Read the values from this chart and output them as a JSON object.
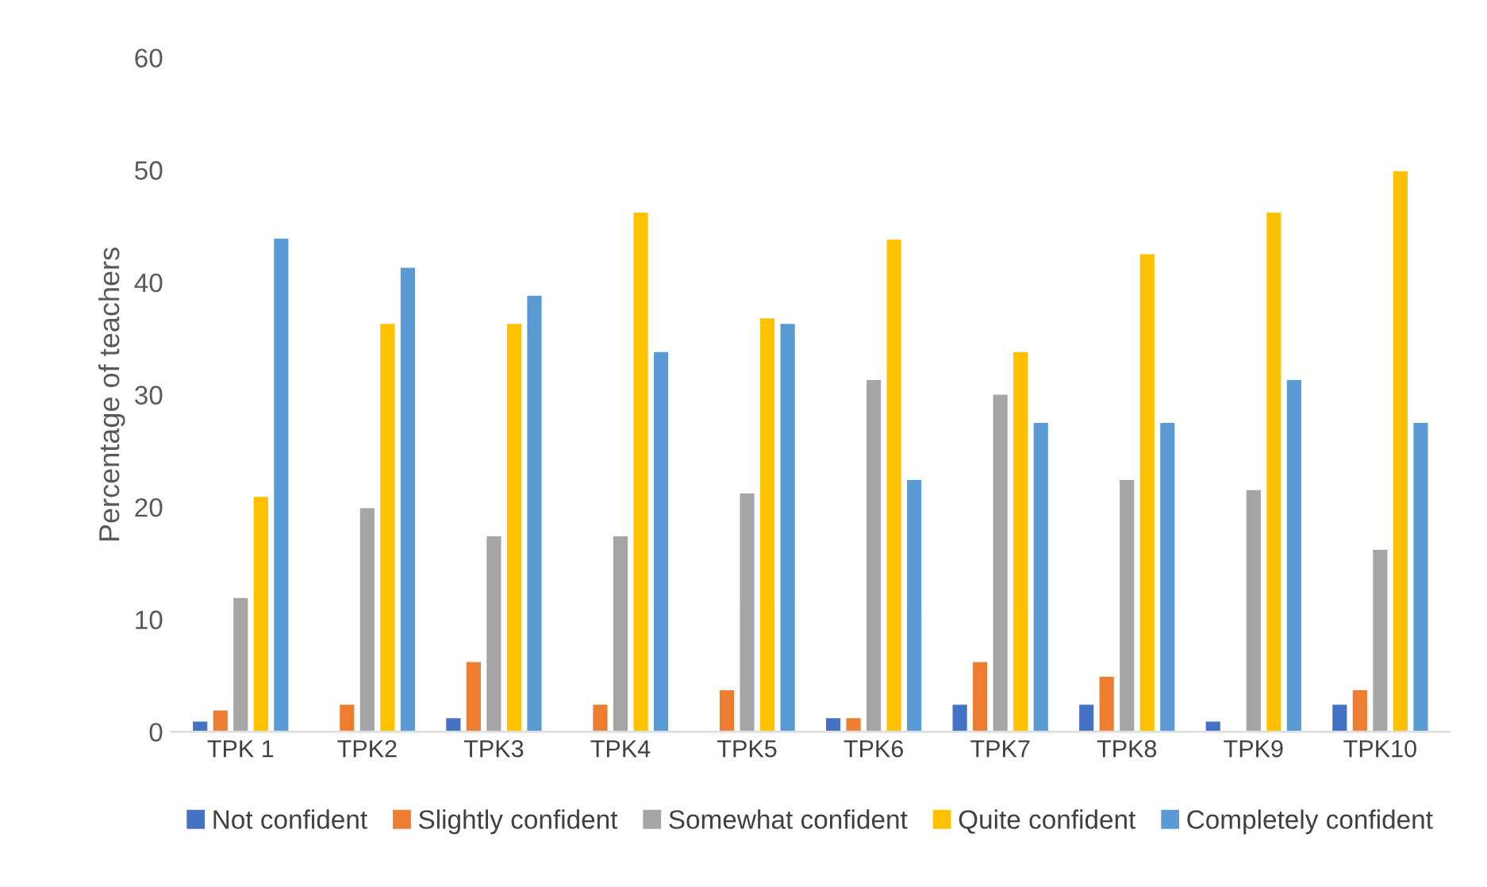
{
  "chart_data": {
    "type": "bar",
    "ylabel": "Percentage of teachers",
    "categories": [
      "TPK 1",
      "TPK2",
      "TPK3",
      "TPK4",
      "TPK5",
      "TPK6",
      "TPK7",
      "TPK8",
      "TPK9",
      "TPK10"
    ],
    "series": [
      {
        "name": "Not confident",
        "color": "#4472c4",
        "values": [
          1,
          0,
          1.3,
          0,
          0,
          1.3,
          2.5,
          2.5,
          1,
          2.5
        ]
      },
      {
        "name": "Slightly confident",
        "color": "#ed7d31",
        "values": [
          2,
          2.5,
          6.3,
          2.5,
          3.8,
          1.3,
          6.3,
          5,
          0,
          3.8
        ]
      },
      {
        "name": "Somewhat confident",
        "color": "#a5a5a5",
        "values": [
          12,
          20,
          17.5,
          17.5,
          21.3,
          31.4,
          30.1,
          22.5,
          21.6,
          16.3
        ]
      },
      {
        "name": "Quite confident",
        "color": "#ffc000",
        "values": [
          21,
          36.4,
          36.4,
          46.3,
          36.9,
          43.9,
          33.9,
          42.6,
          46.3,
          50
        ]
      },
      {
        "name": "Completely confident",
        "color": "#5b9bd5",
        "values": [
          44,
          41.4,
          38.9,
          33.9,
          36.4,
          22.5,
          27.6,
          27.6,
          31.4,
          27.6
        ]
      }
    ],
    "ylim": [
      0,
      60
    ],
    "yticks": [
      0,
      10,
      20,
      30,
      40,
      50,
      60
    ],
    "grid": false,
    "legend": "bottom"
  }
}
